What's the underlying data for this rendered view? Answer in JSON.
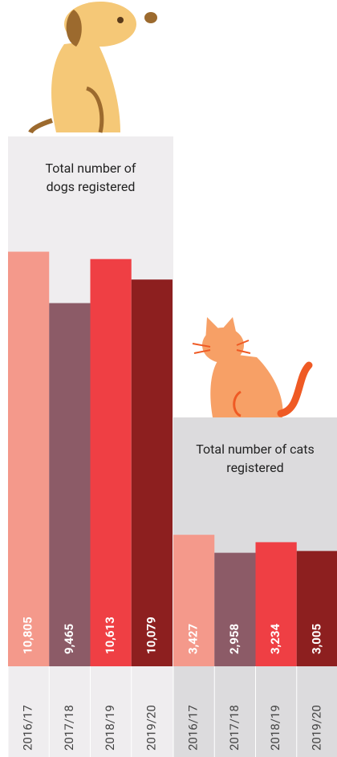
{
  "chart_data": [
    {
      "type": "bar",
      "title": "Total number of dogs registered",
      "categories": [
        "2016/17",
        "2017/18",
        "2018/19",
        "2019/20"
      ],
      "values": [
        10805,
        9465,
        10613,
        10079
      ],
      "value_labels": [
        "10,805",
        "9,465",
        "10,613",
        "10,079"
      ],
      "colors": [
        "#f4998b",
        "#8c5b67",
        "#ef3f44",
        "#8d1f1f"
      ]
    },
    {
      "type": "bar",
      "title": "Total number of cats registered",
      "categories": [
        "2016/17",
        "2017/18",
        "2018/19",
        "2019/20"
      ],
      "values": [
        3427,
        2958,
        3234,
        3005
      ],
      "value_labels": [
        "3,427",
        "2,958",
        "3,234",
        "3,005"
      ],
      "colors": [
        "#f4998b",
        "#8c5b67",
        "#ef3f44",
        "#8d1f1f"
      ]
    }
  ]
}
